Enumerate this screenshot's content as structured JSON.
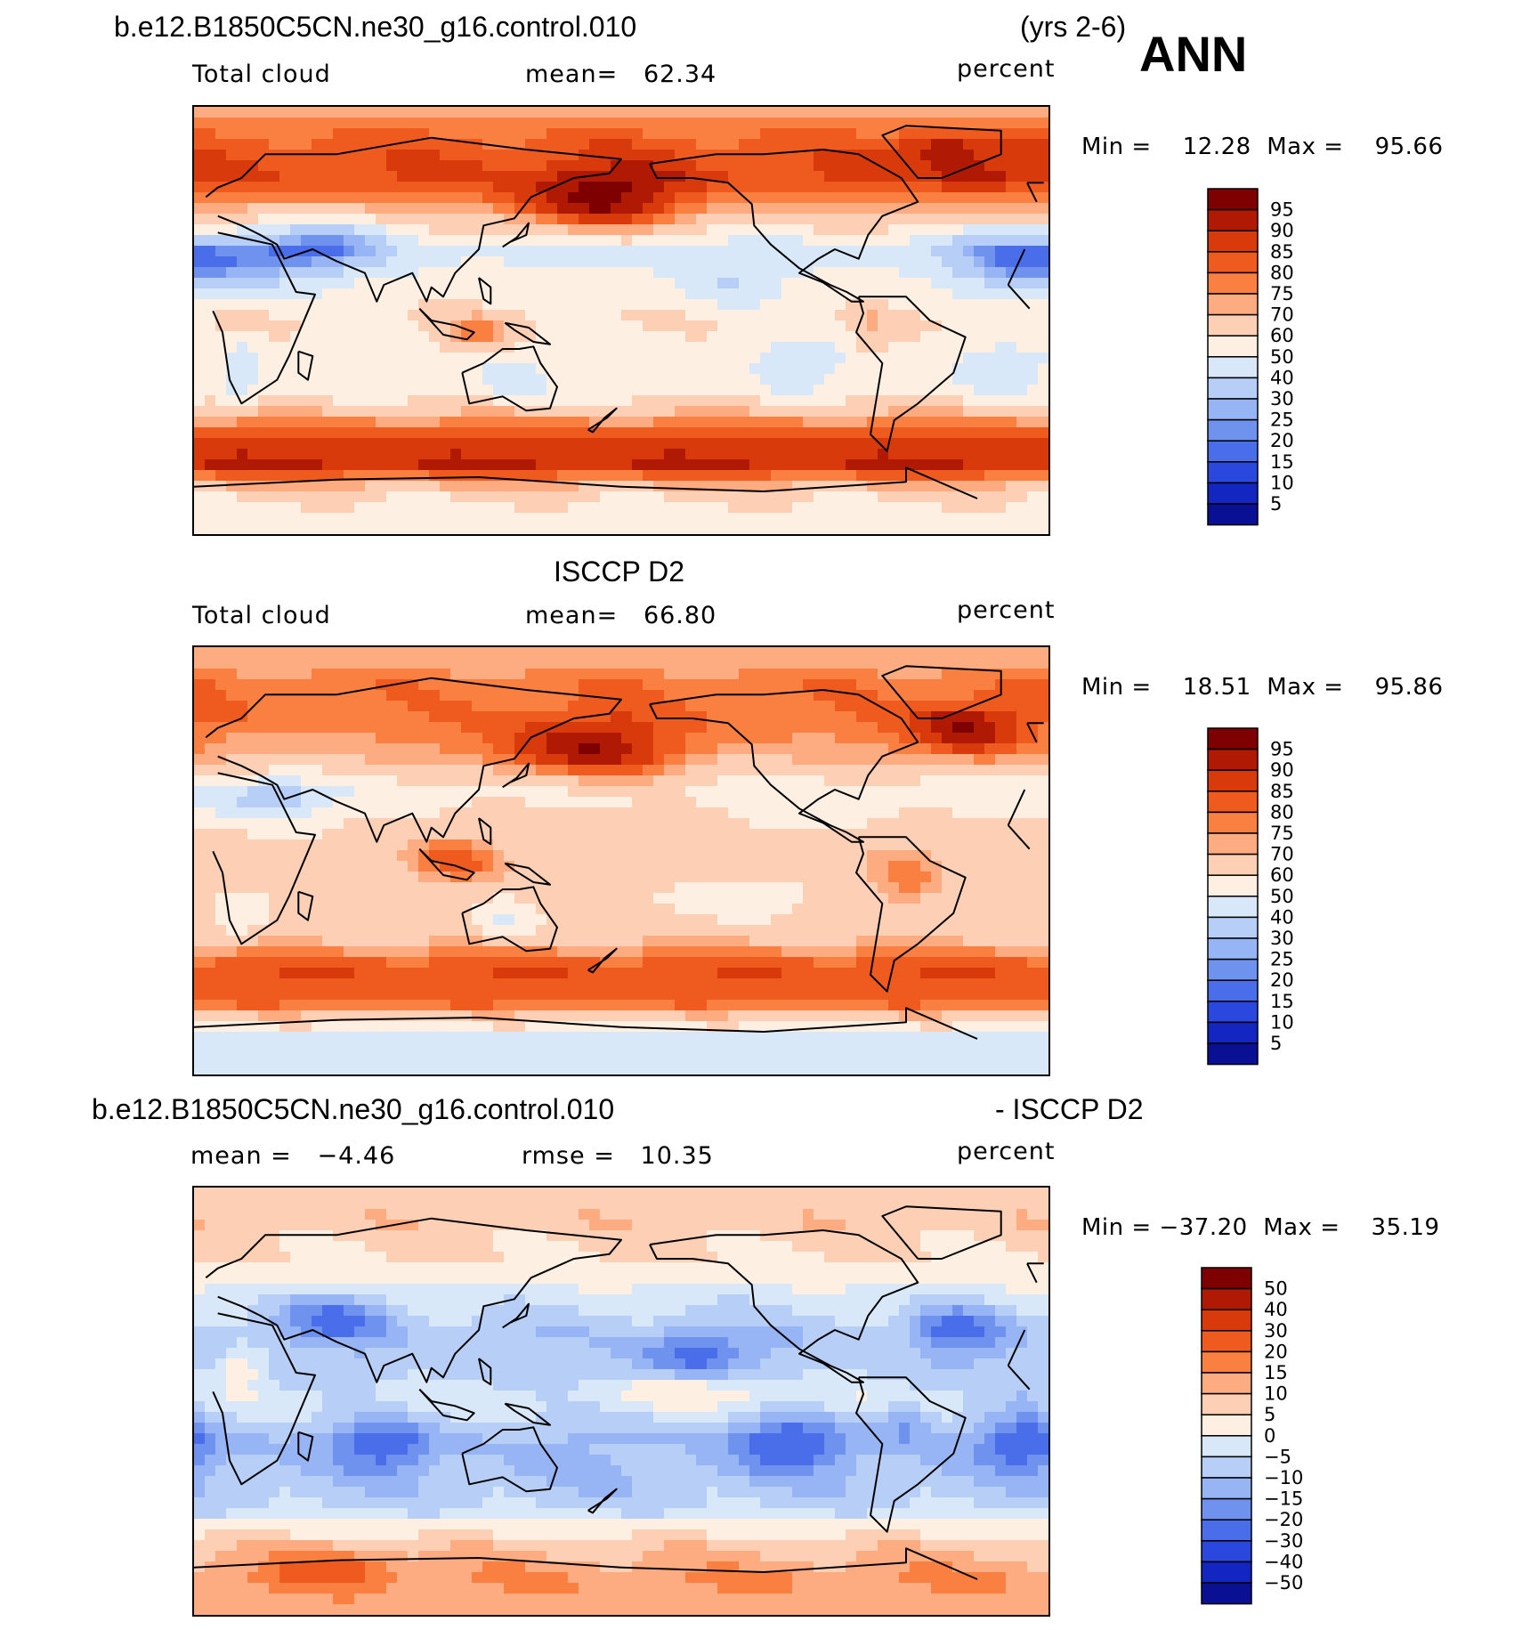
{
  "header": {
    "case_title": "b.e12.B1850C5CN.ne30_g16.control.010",
    "years": "(yrs 2-6)",
    "season": "ANN"
  },
  "chart_data": [
    {
      "type": "heatmap",
      "id": "panel-model",
      "title": "",
      "variable": "Total cloud",
      "stat_left": "mean=   62.34",
      "units": "percent",
      "minmax": "Min =    12.28  Max =    95.66",
      "min": 12.28,
      "max": 95.66,
      "mean": 62.34,
      "colorbar": {
        "labels": [
          "95",
          "90",
          "85",
          "80",
          "75",
          "70",
          "60",
          "50",
          "40",
          "30",
          "25",
          "20",
          "15",
          "10",
          "5"
        ],
        "colors": [
          "#7f0000",
          "#b01a05",
          "#d83a0c",
          "#ef5a1f",
          "#f98040",
          "#fdab80",
          "#fdd0b5",
          "#fdf0e2",
          "#d8e8f8",
          "#b7cff7",
          "#97b5f4",
          "#6f92ef",
          "#4a6ee9",
          "#2a48dd",
          "#1326c1",
          "#0a1094"
        ]
      },
      "field": {
        "base": 55,
        "zonal_nodes": [
          [
            90,
            72
          ],
          [
            75,
            82
          ],
          [
            60,
            85
          ],
          [
            45,
            70
          ],
          [
            30,
            45
          ],
          [
            15,
            55
          ],
          [
            0,
            60
          ],
          [
            -15,
            55
          ],
          [
            -30,
            55
          ],
          [
            -45,
            80
          ],
          [
            -60,
            92
          ],
          [
            -75,
            60
          ],
          [
            -90,
            55
          ]
        ],
        "blobs": [
          [
            170,
            48,
            35,
            14,
            22
          ],
          [
            -15,
            25,
            30,
            14,
            -25
          ],
          [
            30,
            25,
            35,
            12,
            -25
          ],
          [
            60,
            35,
            25,
            10,
            -18
          ],
          [
            -135,
            15,
            22,
            10,
            -15
          ],
          [
            -105,
            -18,
            20,
            10,
            -12
          ],
          [
            -20,
            -20,
            20,
            10,
            -12
          ],
          [
            133,
            -25,
            14,
            9,
            -12
          ],
          [
            120,
            -5,
            15,
            8,
            20
          ],
          [
            -75,
            -5,
            6,
            12,
            12
          ],
          [
            -45,
            72,
            20,
            8,
            12
          ],
          [
            20,
            -22,
            8,
            12,
            -15
          ],
          [
            -30,
            60,
            18,
            8,
            10
          ]
        ]
      }
    },
    {
      "type": "heatmap",
      "id": "panel-obs",
      "title": "ISCCP D2",
      "variable": "Total cloud",
      "stat_left": "mean=   66.80",
      "units": "percent",
      "minmax": "Min =    18.51  Max =    95.86",
      "min": 18.51,
      "max": 95.86,
      "mean": 66.8,
      "colorbar": {
        "labels": [
          "95",
          "90",
          "85",
          "80",
          "75",
          "70",
          "60",
          "50",
          "40",
          "30",
          "25",
          "20",
          "15",
          "10",
          "5"
        ],
        "colors": [
          "#7f0000",
          "#b01a05",
          "#d83a0c",
          "#ef5a1f",
          "#f98040",
          "#fdab80",
          "#fdd0b5",
          "#fdf0e2",
          "#d8e8f8",
          "#b7cff7",
          "#97b5f4",
          "#6f92ef",
          "#4a6ee9",
          "#2a48dd",
          "#1326c1",
          "#0a1094"
        ]
      },
      "field": {
        "base": 60,
        "zonal_nodes": [
          [
            90,
            70
          ],
          [
            75,
            78
          ],
          [
            60,
            78
          ],
          [
            45,
            72
          ],
          [
            30,
            55
          ],
          [
            15,
            62
          ],
          [
            0,
            67
          ],
          [
            -15,
            62
          ],
          [
            -30,
            65
          ],
          [
            -45,
            85
          ],
          [
            -60,
            80
          ],
          [
            -75,
            45
          ],
          [
            -90,
            40
          ]
        ],
        "blobs": [
          [
            165,
            45,
            40,
            15,
            22
          ],
          [
            -35,
            55,
            25,
            12,
            20
          ],
          [
            30,
            25,
            25,
            10,
            -25
          ],
          [
            -135,
            -15,
            25,
            10,
            -10
          ],
          [
            110,
            0,
            20,
            10,
            15
          ],
          [
            130,
            -25,
            12,
            8,
            -15
          ],
          [
            -60,
            -10,
            15,
            12,
            12
          ],
          [
            20,
            -25,
            12,
            10,
            -10
          ],
          [
            -100,
            20,
            20,
            8,
            -8
          ]
        ]
      }
    },
    {
      "type": "heatmap",
      "id": "panel-diff",
      "title": "b.e12.B1850C5CN.ne30_g16.control.010",
      "title_right": "- ISCCP D2",
      "variable": "mean =   −4.46",
      "stat_left": "rmse =   10.35",
      "units": "percent",
      "minmax": "Min = −37.20  Max =    35.19",
      "min": -37.2,
      "max": 35.19,
      "mean": -4.46,
      "rmse": 10.35,
      "colorbar": {
        "labels": [
          "50",
          "40",
          "30",
          "20",
          "15",
          "10",
          "5",
          "0",
          "−5",
          "−10",
          "−15",
          "−20",
          "−30",
          "−40",
          "−50"
        ],
        "colors": [
          "#7f0000",
          "#b01a05",
          "#d83a0c",
          "#ef5a1f",
          "#f98040",
          "#fdab80",
          "#fdd0b5",
          "#fdf0e2",
          "#d8e8f8",
          "#b7cff7",
          "#97b5f4",
          "#6f92ef",
          "#4a6ee9",
          "#2a48dd",
          "#1326c1",
          "#0a1094"
        ]
      },
      "field": {
        "base": 0,
        "zonal_nodes": [
          [
            90,
            8
          ],
          [
            75,
            8
          ],
          [
            60,
            5
          ],
          [
            45,
            -2
          ],
          [
            30,
            -8
          ],
          [
            15,
            -8
          ],
          [
            0,
            -2
          ],
          [
            -15,
            -10
          ],
          [
            -30,
            -10
          ],
          [
            -45,
            -6
          ],
          [
            -60,
            8
          ],
          [
            -75,
            15
          ],
          [
            -90,
            12
          ]
        ],
        "blobs": [
          [
            -150,
            20,
            22,
            10,
            -15
          ],
          [
            -110,
            -18,
            22,
            10,
            -18
          ],
          [
            -10,
            -18,
            18,
            10,
            -16
          ],
          [
            80,
            -18,
            20,
            10,
            -15
          ],
          [
            -40,
            30,
            18,
            10,
            -15
          ],
          [
            60,
            35,
            25,
            10,
            -15
          ],
          [
            -60,
            -8,
            10,
            10,
            -10
          ],
          [
            -140,
            5,
            40,
            6,
            8
          ],
          [
            20,
            15,
            10,
            8,
            10
          ],
          [
            -10,
            0,
            12,
            8,
            -6
          ],
          [
            60,
            -70,
            25,
            8,
            10
          ]
        ]
      }
    }
  ]
}
